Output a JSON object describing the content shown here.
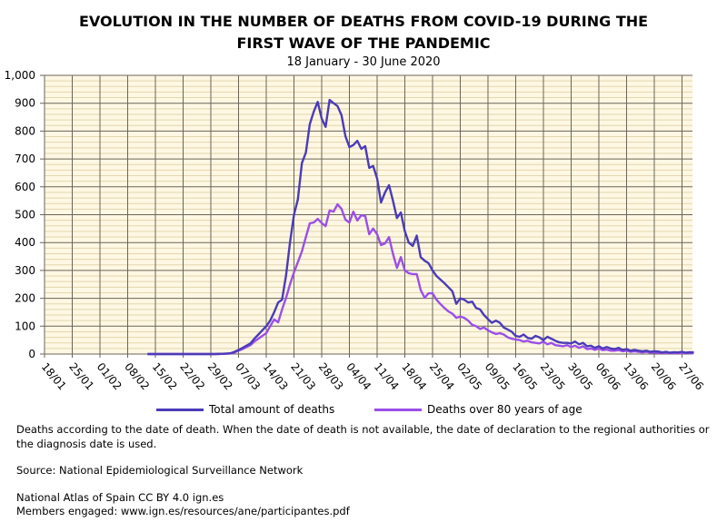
{
  "title_line1": "EVOLUTION IN THE NUMBER OF DEATHS FROM COVID-19 DURING THE",
  "title_line2": "FIRST WAVE OF THE PANDEMIC",
  "subtitle": "18 January - 30 June 2020",
  "notes": {
    "definition": "Deaths according to the date of death. When the date of death is not available, the date of declaration to the regional authorities or the diagnosis date is used.",
    "source": "Source: National Epidemiological Surveillance Network",
    "atlas": "National Atlas of Spain CC BY 4.0 ign.es",
    "members": "Members engaged: www.ign.es/resources/ane/participantes.pdf"
  },
  "chart_data": {
    "type": "line",
    "title": "EVOLUTION IN THE NUMBER OF DEATHS FROM COVID-19 DURING THE FIRST WAVE OF THE PANDEMIC",
    "subtitle": "18 January - 30 June 2020",
    "ylim": [
      0,
      1000
    ],
    "y_ticks": [
      "0",
      "100",
      "200",
      "300",
      "400",
      "500",
      "600",
      "700",
      "800",
      "900",
      "1,000"
    ],
    "x_ticks": [
      "18/01",
      "25/01",
      "01/02",
      "08/02",
      "15/02",
      "22/02",
      "29/02",
      "07/03",
      "14/03",
      "21/03",
      "28/03",
      "04/04",
      "11/04",
      "18/04",
      "25/04",
      "02/05",
      "09/05",
      "16/05",
      "23/05",
      "30/05",
      "06/06",
      "13/06",
      "20/06",
      "27/06"
    ],
    "grid": true,
    "legend_position": "bottom",
    "background_color": "#fdf7e3",
    "x": [
      "13/02",
      "14/02",
      "15/02",
      "16/02",
      "17/02",
      "18/02",
      "19/02",
      "20/02",
      "21/02",
      "22/02",
      "23/02",
      "24/02",
      "25/02",
      "26/02",
      "27/02",
      "28/02",
      "29/02",
      "01/03",
      "02/03",
      "03/03",
      "04/03",
      "05/03",
      "06/03",
      "07/03",
      "08/03",
      "09/03",
      "10/03",
      "11/03",
      "12/03",
      "13/03",
      "14/03",
      "15/03",
      "16/03",
      "17/03",
      "18/03",
      "19/03",
      "20/03",
      "21/03",
      "22/03",
      "23/03",
      "24/03",
      "25/03",
      "26/03",
      "27/03",
      "28/03",
      "29/03",
      "30/03",
      "31/03",
      "01/04",
      "02/04",
      "03/04",
      "04/04",
      "05/04",
      "06/04",
      "07/04",
      "08/04",
      "09/04",
      "10/04",
      "11/04",
      "12/04",
      "13/04",
      "14/04",
      "15/04",
      "16/04",
      "17/04",
      "18/04",
      "19/04",
      "20/04",
      "21/04",
      "22/04",
      "23/04",
      "24/04",
      "25/04",
      "26/04",
      "27/04",
      "28/04",
      "29/04",
      "30/04",
      "01/05",
      "02/05",
      "03/05",
      "04/05",
      "05/05",
      "06/05",
      "07/05",
      "08/05",
      "09/05",
      "10/05",
      "11/05",
      "12/05",
      "13/05",
      "14/05",
      "15/05",
      "16/05",
      "17/05",
      "18/05",
      "19/05",
      "20/05",
      "21/05",
      "22/05",
      "23/05",
      "24/05",
      "25/05",
      "26/05",
      "27/05",
      "28/05",
      "29/05",
      "30/05",
      "31/05",
      "01/06",
      "02/06",
      "03/06",
      "04/06",
      "05/06",
      "06/06",
      "07/06",
      "08/06",
      "09/06",
      "10/06",
      "11/06",
      "12/06",
      "13/06",
      "14/06",
      "15/06",
      "16/06",
      "17/06",
      "18/06",
      "19/06",
      "20/06",
      "21/06",
      "22/06",
      "23/06",
      "24/06",
      "25/06",
      "26/06",
      "27/06",
      "28/06",
      "29/06",
      "30/06"
    ],
    "series": [
      {
        "name": "Total amount of deaths",
        "color": "#4b3bb8",
        "values": [
          0,
          0,
          0,
          0,
          0,
          0,
          0,
          0,
          0,
          0,
          0,
          0,
          0,
          0,
          0,
          0,
          0,
          0,
          1,
          1,
          2,
          3,
          8,
          15,
          22,
          30,
          38,
          55,
          70,
          85,
          100,
          120,
          150,
          185,
          195,
          283,
          400,
          500,
          555,
          685,
          723,
          825,
          870,
          905,
          845,
          815,
          912,
          900,
          890,
          857,
          782,
          743,
          750,
          765,
          736,
          746,
          668,
          675,
          630,
          544,
          580,
          606,
          550,
          488,
          508,
          440,
          400,
          388,
          425,
          348,
          335,
          326,
          300,
          280,
          267,
          254,
          240,
          225,
          180,
          200,
          195,
          185,
          188,
          165,
          160,
          140,
          125,
          112,
          120,
          112,
          95,
          88,
          80,
          65,
          62,
          70,
          58,
          55,
          65,
          60,
          50,
          62,
          55,
          48,
          42,
          40,
          40,
          38,
          45,
          35,
          40,
          28,
          30,
          22,
          28,
          20,
          25,
          20,
          18,
          22,
          15,
          18,
          12,
          15,
          12,
          10,
          12,
          8,
          10,
          9,
          6,
          8,
          5,
          7,
          6,
          8,
          5,
          7,
          6
        ]
      },
      {
        "name": "Deaths over 80 years of age",
        "color": "#9b4fe8",
        "values": [
          0,
          0,
          0,
          0,
          0,
          0,
          0,
          0,
          0,
          0,
          0,
          0,
          0,
          0,
          0,
          0,
          0,
          0,
          0,
          1,
          1,
          2,
          6,
          12,
          18,
          25,
          32,
          45,
          55,
          65,
          75,
          100,
          124,
          114,
          160,
          202,
          250,
          293,
          330,
          368,
          420,
          469,
          472,
          485,
          470,
          459,
          515,
          511,
          537,
          521,
          482,
          472,
          511,
          479,
          498,
          495,
          430,
          450,
          430,
          391,
          397,
          420,
          360,
          309,
          348,
          300,
          290,
          287,
          287,
          230,
          202,
          218,
          218,
          195,
          179,
          165,
          153,
          145,
          130,
          135,
          130,
          120,
          105,
          100,
          90,
          95,
          85,
          78,
          72,
          75,
          70,
          60,
          55,
          52,
          50,
          45,
          48,
          42,
          40,
          38,
          45,
          35,
          40,
          32,
          30,
          28,
          32,
          25,
          30,
          22,
          28,
          18,
          20,
          15,
          20,
          14,
          16,
          12,
          12,
          14,
          10,
          12,
          8,
          10,
          8,
          6,
          8,
          5,
          6,
          5,
          4,
          5,
          3,
          4,
          3,
          4,
          3,
          4,
          3
        ]
      }
    ]
  }
}
